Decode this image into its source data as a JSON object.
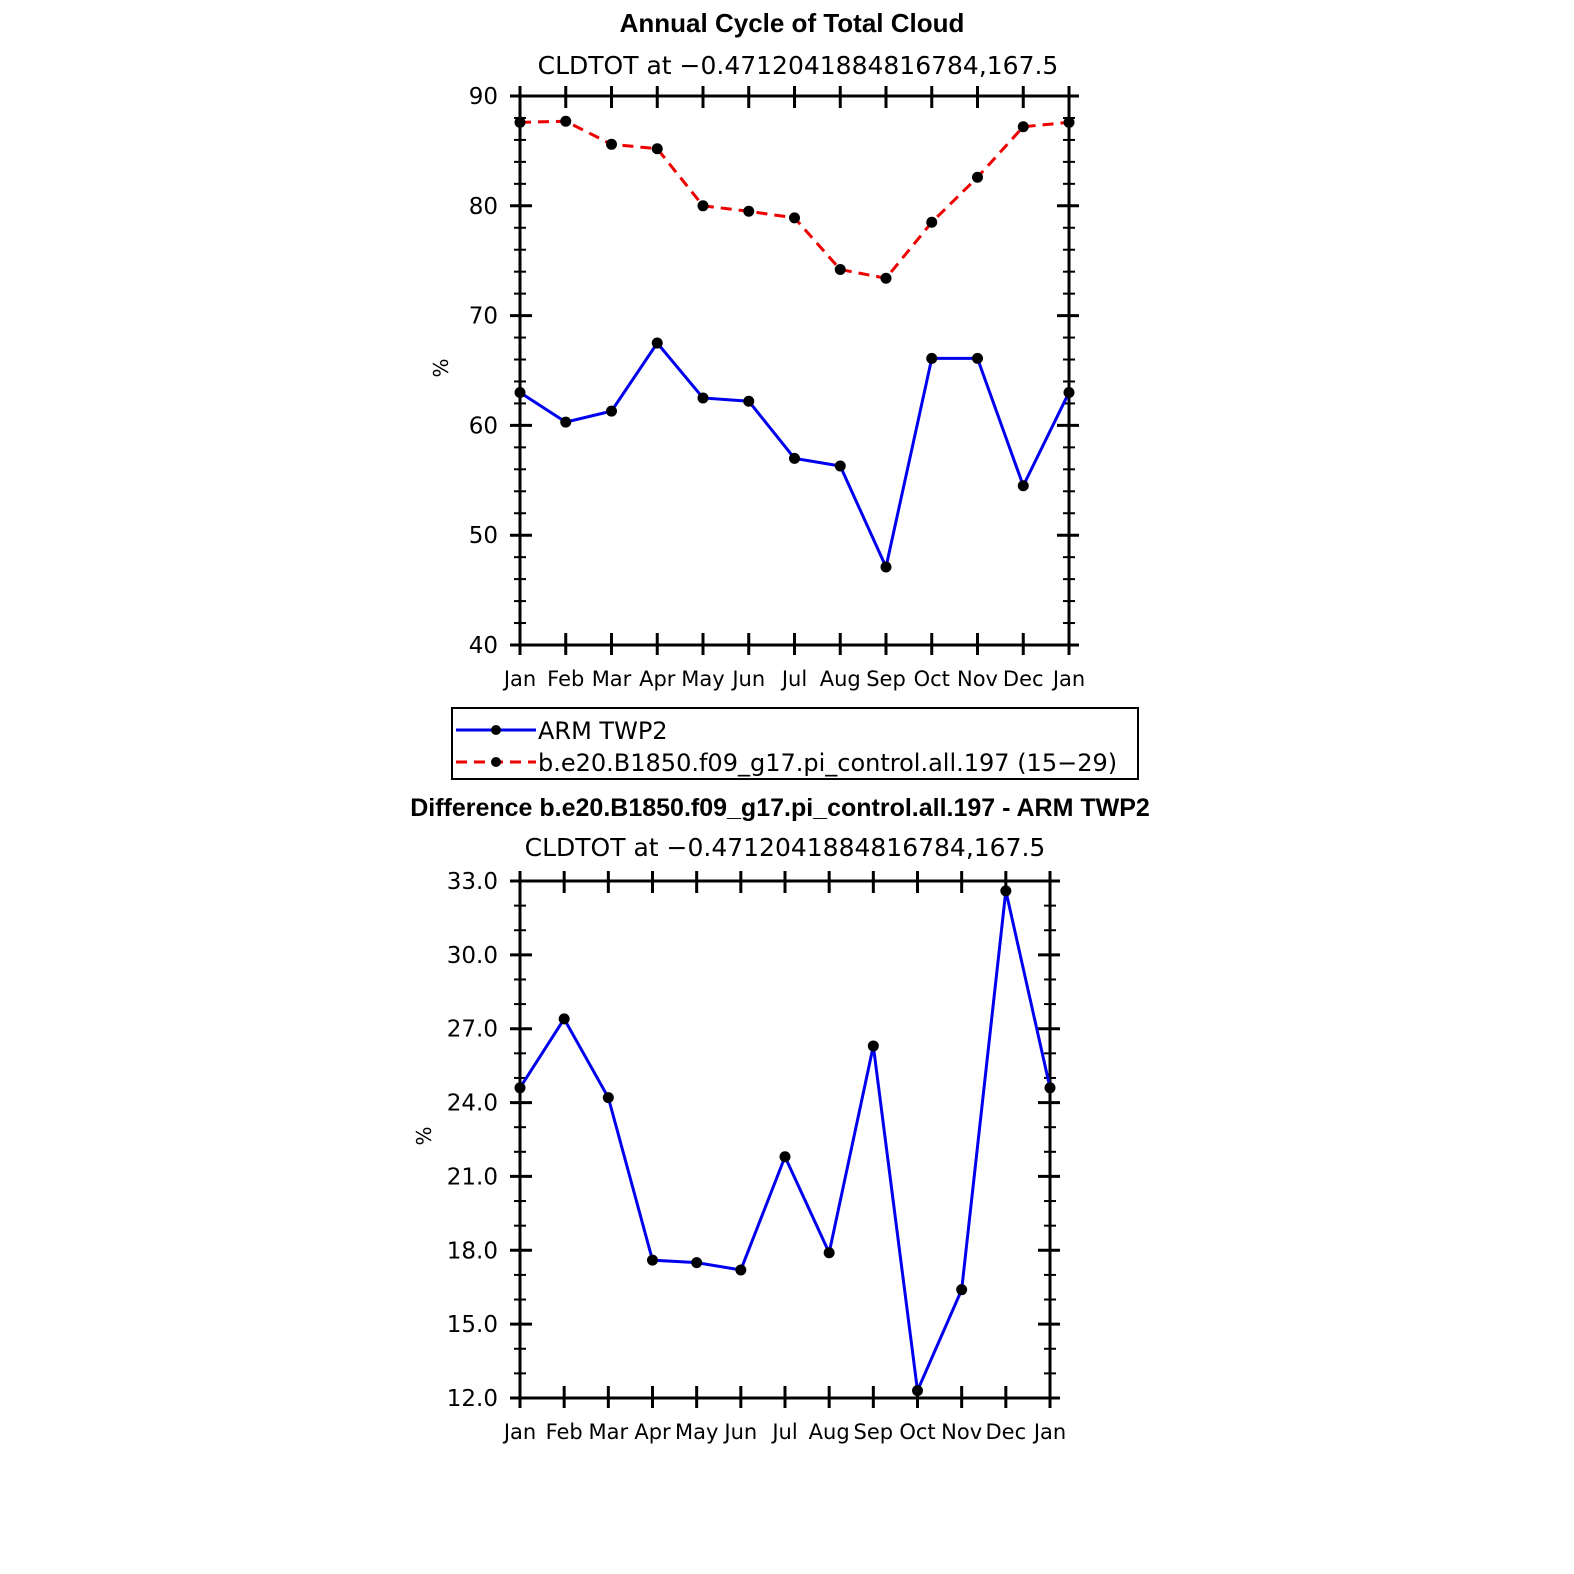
{
  "chart_data": [
    {
      "type": "line",
      "title": "Annual Cycle of Total Cloud",
      "subtitle": "CLDTOT at −0.4712041884816784,167.5",
      "ylabel": "%",
      "ylim": [
        40,
        90
      ],
      "yticks": [
        "40",
        "50",
        "60",
        "70",
        "80",
        "90"
      ],
      "categories": [
        "Jan",
        "Feb",
        "Mar",
        "Apr",
        "May",
        "Jun",
        "Jul",
        "Aug",
        "Sep",
        "Oct",
        "Nov",
        "Dec",
        "Jan"
      ],
      "series": [
        {
          "name": "ARM TWP2",
          "color": "#0000ee",
          "dash": "solid",
          "values": [
            63.0,
            60.3,
            61.3,
            67.5,
            62.5,
            62.2,
            57.0,
            56.3,
            47.1,
            66.1,
            66.1,
            54.5,
            63.0
          ]
        },
        {
          "name": "b.e20.B1850.f09_g17.pi_control.all.197 (15−29)",
          "color": "#ee0000",
          "dash": "dashed",
          "values": [
            87.6,
            87.7,
            85.6,
            85.2,
            80.0,
            79.5,
            78.9,
            74.2,
            73.4,
            78.5,
            82.6,
            87.2,
            87.6
          ]
        }
      ],
      "legend": "below",
      "grid": false
    },
    {
      "type": "line",
      "title": "Difference b.e20.B1850.f09_g17.pi_control.all.197 - ARM TWP2",
      "subtitle": "CLDTOT at −0.4712041884816784,167.5",
      "ylabel": "%",
      "ylim": [
        12,
        33
      ],
      "yticks": [
        "12.0",
        "15.0",
        "18.0",
        "21.0",
        "24.0",
        "27.0",
        "30.0",
        "33.0"
      ],
      "categories": [
        "Jan",
        "Feb",
        "Mar",
        "Apr",
        "May",
        "Jun",
        "Jul",
        "Aug",
        "Sep",
        "Oct",
        "Nov",
        "Dec",
        "Jan"
      ],
      "series": [
        {
          "color": "#0000ee",
          "dash": "solid",
          "values": [
            24.6,
            27.4,
            24.2,
            17.6,
            17.5,
            17.2,
            21.8,
            17.9,
            26.3,
            12.3,
            16.4,
            32.6,
            24.6
          ]
        }
      ],
      "grid": false
    }
  ]
}
